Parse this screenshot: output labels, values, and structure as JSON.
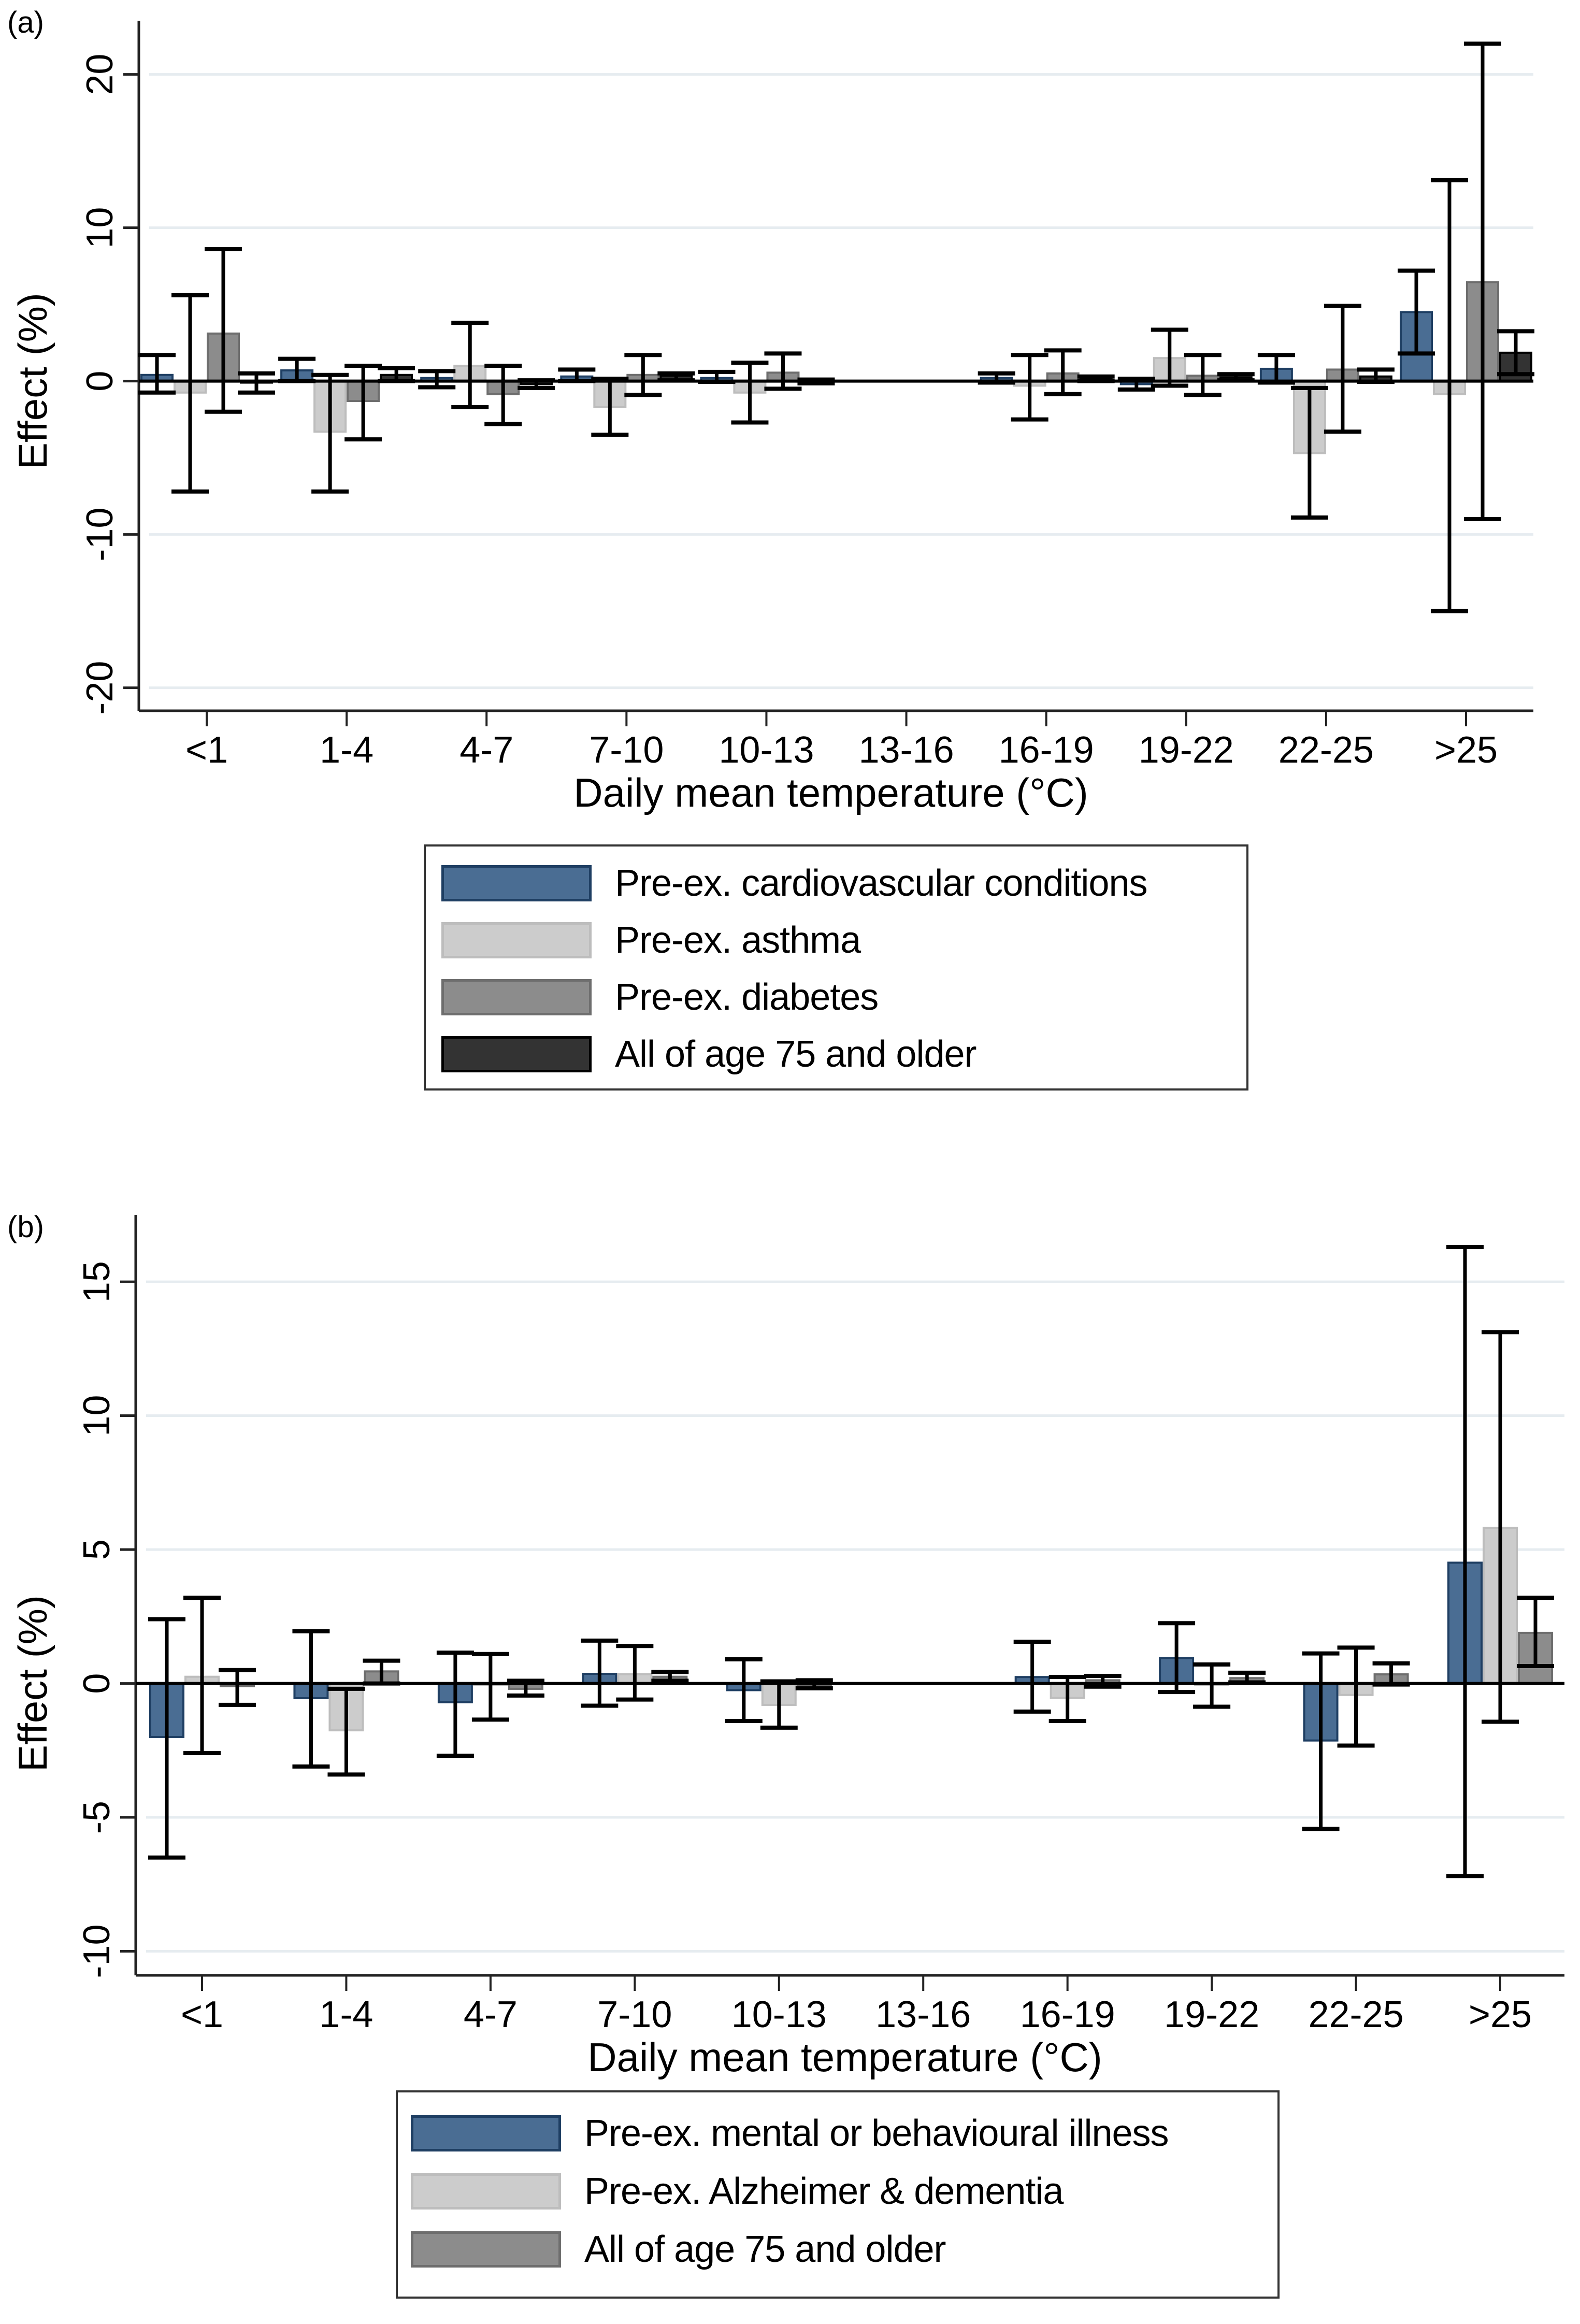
{
  "panels": [
    {
      "label": "(a)",
      "legend": [
        {
          "label": "Pre-ex. cardiovascular conditions",
          "color": "#4a6d93",
          "border": "#1f3f63"
        },
        {
          "label": "Pre-ex. asthma",
          "color": "#cccccc",
          "border": "#bdbdbd"
        },
        {
          "label": "Pre-ex. diabetes",
          "color": "#8c8c8c",
          "border": "#6e6e6e"
        },
        {
          "label": "All of age 75 and older",
          "color": "#333333",
          "border": "#000000"
        }
      ]
    },
    {
      "label": "(b)",
      "legend": [
        {
          "label": "Pre-ex. mental or behavioural illness",
          "color": "#4a6d93",
          "border": "#1f3f63"
        },
        {
          "label": "Pre-ex. Alzheimer & dementia",
          "color": "#cccccc",
          "border": "#bdbdbd"
        },
        {
          "label": "All of age 75 and older",
          "color": "#8c8c8c",
          "border": "#6e6e6e"
        }
      ]
    }
  ],
  "chart_data": [
    {
      "type": "bar",
      "title": "(a)",
      "xlabel": "Daily mean temperature (°C)",
      "ylabel": "Effect (%)",
      "ylim": [
        -21.5,
        23.5
      ],
      "yticks": [
        -20,
        -10,
        0,
        10,
        20
      ],
      "grid": true,
      "legend_position": "bottom",
      "categories": [
        "<1",
        "1-4",
        "4-7",
        "7-10",
        "10-13",
        "13-16",
        "16-19",
        "19-22",
        "22-25",
        ">25"
      ],
      "series": [
        {
          "name": "Pre-ex. cardiovascular conditions",
          "values": [
            0.4,
            0.7,
            0.2,
            0.3,
            0.2,
            null,
            0.2,
            -0.2,
            0.8,
            4.5
          ],
          "ci_low": [
            -0.75,
            0.0,
            -0.4,
            0.0,
            -0.05,
            null,
            -0.1,
            -0.55,
            -0.1,
            1.8
          ],
          "ci_high": [
            1.7,
            1.45,
            0.65,
            0.75,
            0.6,
            null,
            0.5,
            0.15,
            1.7,
            7.2
          ]
        },
        {
          "name": "Pre-ex. asthma",
          "values": [
            -0.75,
            -3.3,
            1.0,
            -1.7,
            -0.75,
            null,
            -0.3,
            1.5,
            -4.7,
            -0.85
          ],
          "ci_low": [
            -7.2,
            -7.2,
            -1.7,
            -3.5,
            -2.7,
            null,
            -2.5,
            -0.3,
            -8.9,
            -15.0
          ],
          "ci_high": [
            5.6,
            0.4,
            3.8,
            0.15,
            1.2,
            null,
            1.7,
            3.35,
            -0.45,
            13.1
          ]
        },
        {
          "name": "Pre-ex. diabetes",
          "values": [
            3.1,
            -1.3,
            -0.85,
            0.4,
            0.55,
            null,
            0.5,
            0.35,
            0.75,
            6.45
          ],
          "ci_low": [
            -2.0,
            -3.8,
            -2.8,
            -0.9,
            -0.5,
            null,
            -0.85,
            -0.9,
            -3.3,
            -9.0
          ],
          "ci_high": [
            8.6,
            1.0,
            1.0,
            1.7,
            1.8,
            null,
            2.0,
            1.7,
            4.9,
            22.0
          ]
        },
        {
          "name": "All of age 75 and older",
          "values": [
            -0.1,
            0.4,
            -0.2,
            0.35,
            -0.05,
            null,
            0.15,
            0.25,
            0.3,
            1.85
          ],
          "ci_low": [
            -0.75,
            0.0,
            -0.45,
            0.05,
            -0.15,
            null,
            0.0,
            0.05,
            -0.05,
            0.45
          ],
          "ci_high": [
            0.5,
            0.85,
            0.05,
            0.5,
            0.1,
            null,
            0.3,
            0.45,
            0.75,
            3.25
          ]
        }
      ]
    },
    {
      "type": "bar",
      "title": "(b)",
      "xlabel": "Daily mean temperature (°C)",
      "ylabel": "Effect (%)",
      "ylim": [
        -10.9,
        17.5
      ],
      "yticks": [
        -10,
        -5,
        0,
        5,
        10,
        15
      ],
      "grid": true,
      "legend_position": "bottom",
      "categories": [
        "<1",
        "1-4",
        "4-7",
        "7-10",
        "10-13",
        "13-16",
        "16-19",
        "19-22",
        "22-25",
        ">25"
      ],
      "series": [
        {
          "name": "Pre-ex. mental or behavioural illness",
          "values": [
            -2.0,
            -0.55,
            -0.7,
            0.36,
            -0.25,
            null,
            0.24,
            0.95,
            -2.13,
            4.51
          ],
          "ci_low": [
            -6.5,
            -3.1,
            -2.7,
            -0.83,
            -1.4,
            null,
            -1.05,
            -0.32,
            -5.43,
            -7.19
          ],
          "ci_high": [
            2.4,
            1.95,
            1.15,
            1.6,
            0.9,
            null,
            1.56,
            2.25,
            1.12,
            16.3
          ]
        },
        {
          "name": "Pre-ex. Alzheimer & dementia",
          "values": [
            0.25,
            -1.75,
            -0.05,
            0.35,
            -0.8,
            null,
            -0.54,
            -0.05,
            -0.43,
            5.81
          ],
          "ci_low": [
            -2.6,
            -3.4,
            -1.35,
            -0.6,
            -1.65,
            null,
            -1.4,
            -0.87,
            -2.32,
            -1.43
          ],
          "ci_high": [
            3.2,
            -0.2,
            1.1,
            1.4,
            0.08,
            null,
            0.24,
            0.71,
            1.34,
            13.12
          ]
        },
        {
          "name": "All of age 75 and older",
          "values": [
            -0.1,
            0.45,
            -0.2,
            0.25,
            -0.05,
            null,
            0.12,
            0.2,
            0.34,
            1.89
          ],
          "ci_low": [
            -0.8,
            0.0,
            -0.45,
            0.1,
            -0.18,
            null,
            -0.12,
            0.04,
            -0.04,
            0.65
          ],
          "ci_high": [
            0.5,
            0.85,
            0.1,
            0.43,
            0.12,
            null,
            0.28,
            0.4,
            0.75,
            3.2
          ]
        }
      ]
    }
  ]
}
